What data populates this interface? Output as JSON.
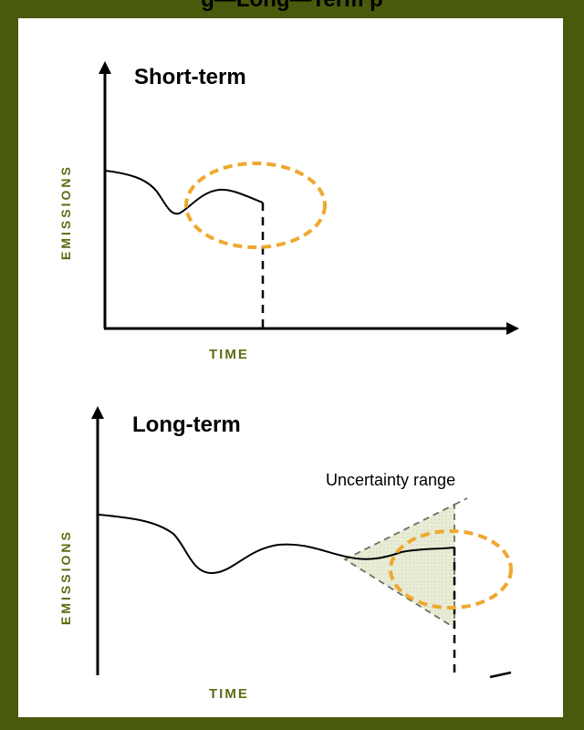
{
  "header": {
    "partial_title": "g—Long—Term p"
  },
  "short_term": {
    "title": "Short-term",
    "ylabel": "EMISSIONS",
    "xlabel": "TIME"
  },
  "long_term": {
    "title": "Long-term",
    "ylabel": "EMISSIONS",
    "xlabel": "TIME",
    "annotation": "Uncertainty range"
  },
  "colors": {
    "frame": "#4a5a0c",
    "label_green": "#5b6e14",
    "dashed_ellipse": "#f0a830",
    "uncertainty_fill": "#e9ecd6"
  }
}
